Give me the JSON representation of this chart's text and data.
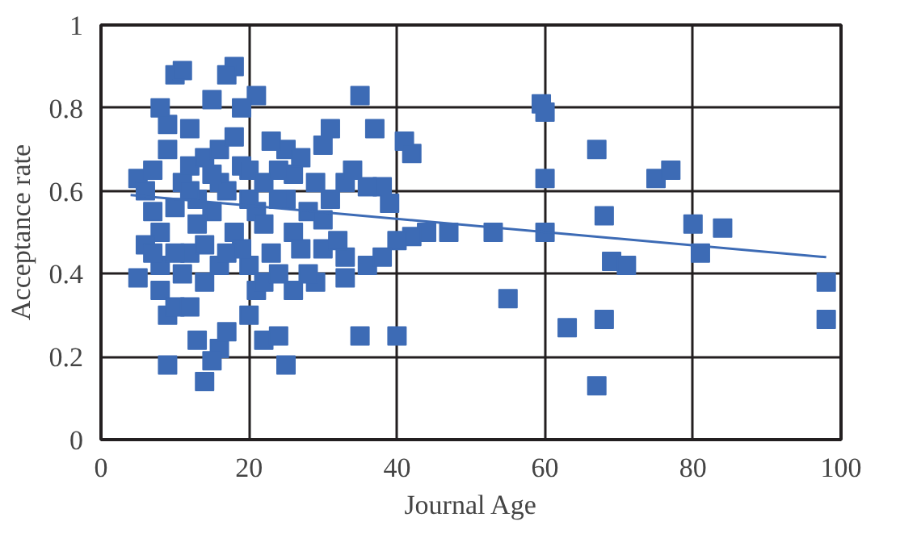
{
  "chart_data": {
    "type": "scatter",
    "xlabel": "Journal Age",
    "ylabel": "Acceptance rate",
    "xlim": [
      0,
      100
    ],
    "ylim": [
      0,
      1
    ],
    "xticks": [
      0,
      20,
      40,
      60,
      80,
      100
    ],
    "yticks": [
      0,
      {
        "value": 0.2,
        "label": "0.2"
      },
      {
        "value": 0.4,
        "label": "0.4"
      },
      {
        "value": 0.6,
        "label": "0.6"
      },
      {
        "value": 0.8,
        "label": "0.8"
      },
      1
    ],
    "grid": true,
    "marker": "square",
    "series": [
      {
        "color": "#3d6bb5",
        "x": [
          59.5,
          60,
          60,
          60,
          67,
          68,
          75,
          77,
          80,
          84,
          81,
          69,
          71,
          68,
          63,
          67,
          55,
          98,
          98,
          53,
          47,
          44,
          42,
          40,
          41,
          42,
          40,
          35,
          35,
          37,
          38,
          36,
          39,
          33,
          34,
          31,
          30,
          36,
          38,
          33,
          30,
          33,
          29,
          28,
          25,
          22,
          24,
          20,
          21,
          21,
          18,
          17,
          19,
          25,
          26,
          27,
          23,
          25,
          23,
          20,
          22,
          16,
          14,
          15,
          17,
          9,
          13,
          10,
          11,
          8,
          9,
          12,
          15,
          5,
          6,
          7,
          7,
          8,
          6,
          5,
          8,
          9,
          10,
          12,
          11,
          12,
          14,
          10,
          12,
          14,
          16,
          17,
          15,
          18,
          19,
          21,
          20,
          13,
          9,
          11,
          16,
          18,
          19,
          14,
          16,
          13,
          20,
          22,
          24,
          26,
          28,
          30,
          32,
          27,
          22,
          24,
          8,
          7,
          10,
          12,
          15,
          17,
          24,
          26,
          29,
          31
        ],
        "values": [
          0.81,
          0.79,
          0.63,
          0.5,
          0.7,
          0.54,
          0.63,
          0.65,
          0.52,
          0.51,
          0.45,
          0.43,
          0.42,
          0.29,
          0.27,
          0.13,
          0.34,
          0.38,
          0.29,
          0.5,
          0.5,
          0.5,
          0.49,
          0.48,
          0.72,
          0.69,
          0.25,
          0.25,
          0.83,
          0.75,
          0.61,
          0.61,
          0.57,
          0.62,
          0.65,
          0.75,
          0.71,
          0.42,
          0.44,
          0.39,
          0.46,
          0.44,
          0.38,
          0.4,
          0.18,
          0.24,
          0.25,
          0.3,
          0.36,
          0.83,
          0.9,
          0.88,
          0.66,
          0.7,
          0.64,
          0.68,
          0.72,
          0.58,
          0.45,
          0.42,
          0.38,
          0.22,
          0.14,
          0.19,
          0.26,
          0.18,
          0.24,
          0.88,
          0.89,
          0.8,
          0.76,
          0.75,
          0.82,
          0.63,
          0.6,
          0.65,
          0.55,
          0.5,
          0.47,
          0.39,
          0.36,
          0.3,
          0.32,
          0.32,
          0.4,
          0.45,
          0.47,
          0.56,
          0.66,
          0.68,
          0.62,
          0.6,
          0.55,
          0.5,
          0.46,
          0.55,
          0.65,
          0.58,
          0.7,
          0.62,
          0.7,
          0.73,
          0.8,
          0.38,
          0.42,
          0.52,
          0.58,
          0.62,
          0.65,
          0.5,
          0.55,
          0.53,
          0.48,
          0.46,
          0.52,
          0.58,
          0.42,
          0.45,
          0.45,
          0.6,
          0.64,
          0.45,
          0.4,
          0.36,
          0.62,
          0.58
        ]
      },
      {
        "color": "#3d6bb5",
        "type": "line",
        "marker": "none",
        "x": [
          4,
          98
        ],
        "values": [
          0.59,
          0.44
        ]
      }
    ]
  }
}
